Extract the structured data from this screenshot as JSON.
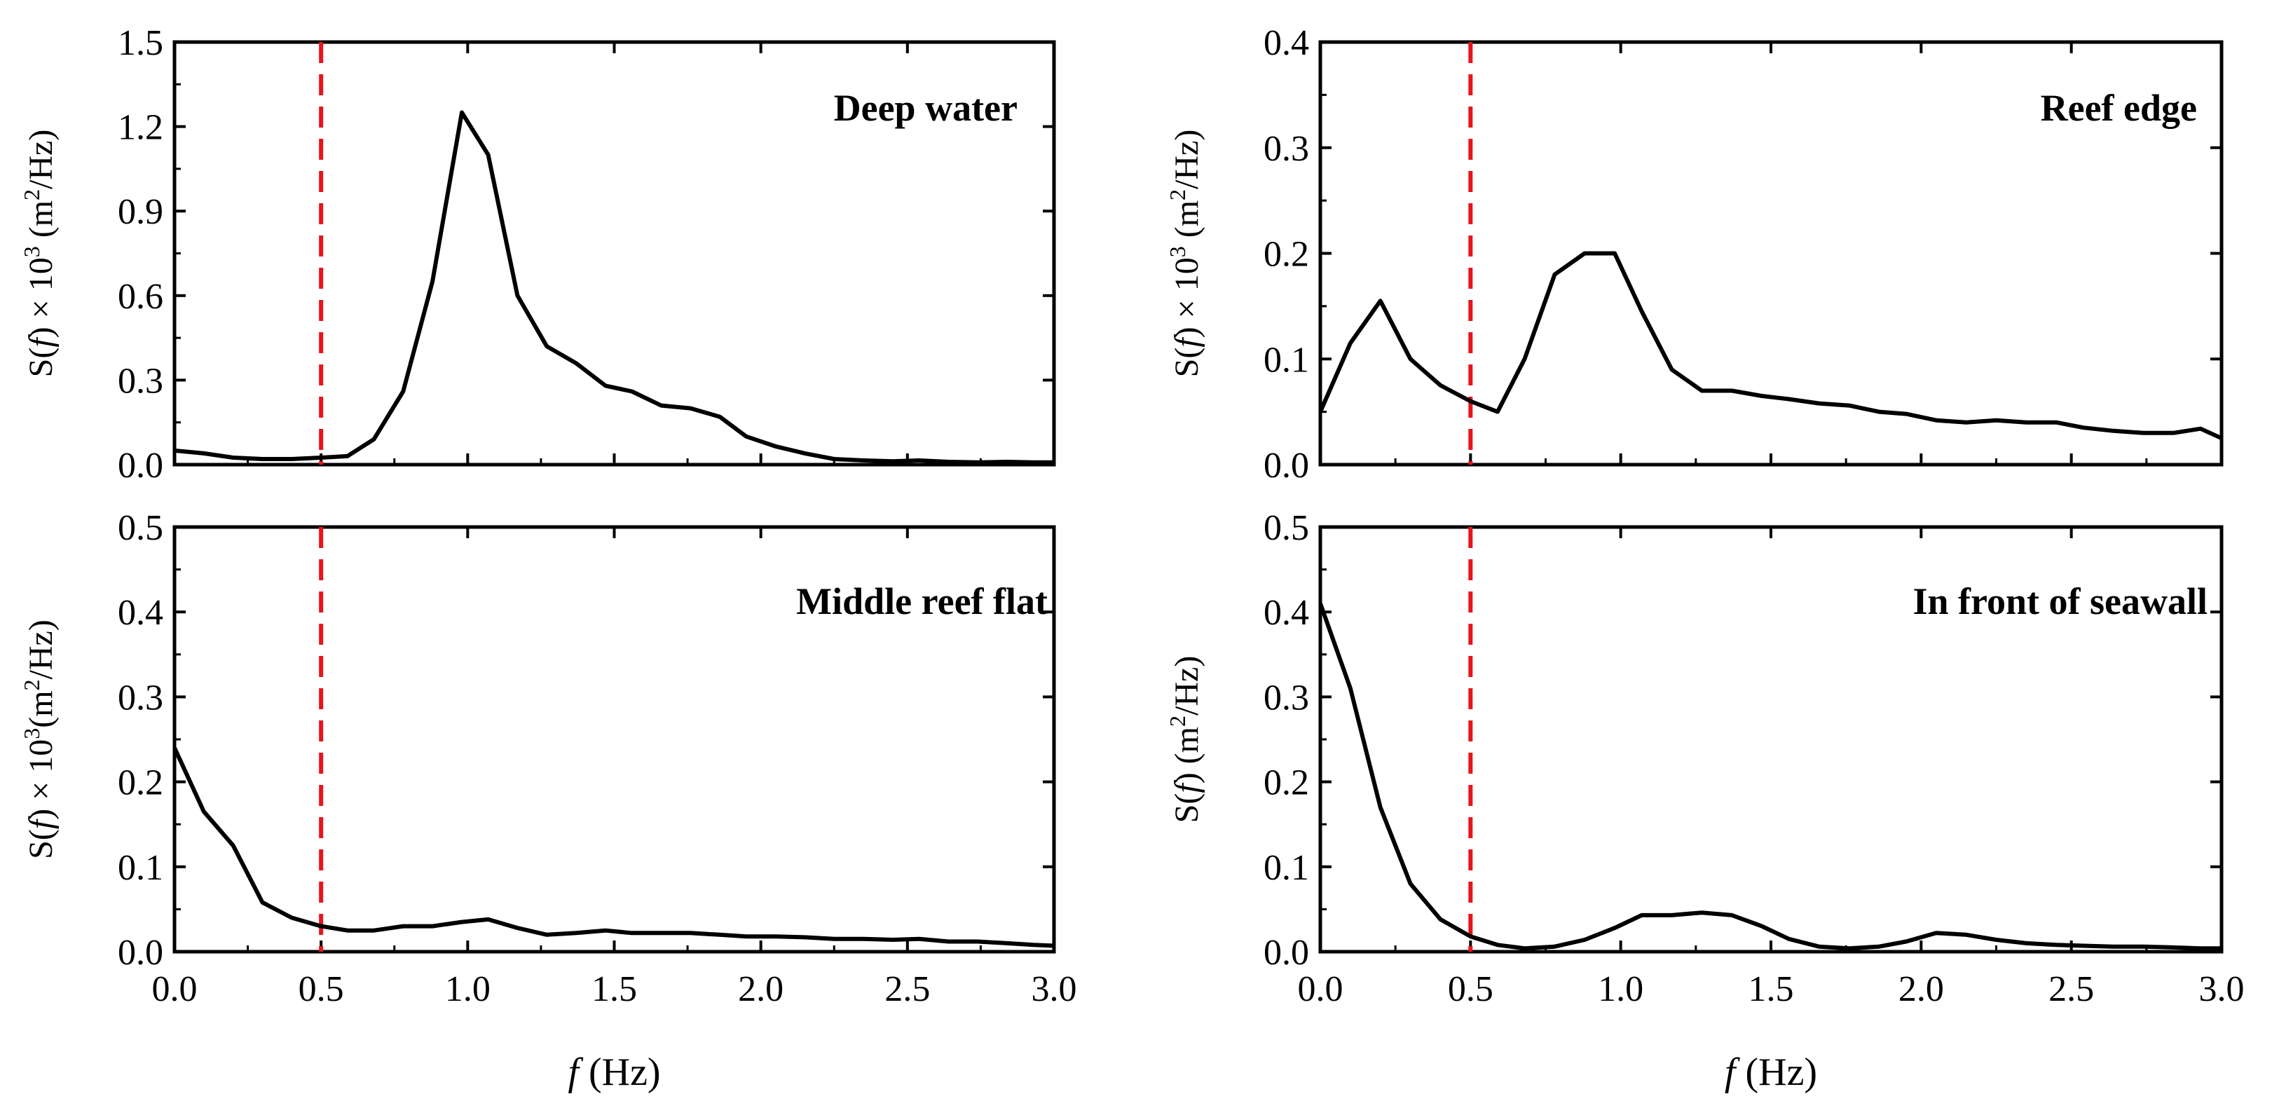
{
  "chart_data": [
    {
      "type": "line",
      "title": "Deep water",
      "xlabel": "f (Hz)",
      "ylabel": "S(f) × 10³ (m²/Hz)",
      "ylabel_parts": {
        "pre": "S(",
        "var": "f",
        "mid": ") × 10",
        "sup1": "3",
        "mid2": " (m",
        "sup2": "2",
        "post": "/Hz)"
      },
      "xlim": [
        0,
        3.0
      ],
      "ylim": [
        0,
        1.5
      ],
      "yticks": [
        "0.0",
        "0.3",
        "0.6",
        "0.9",
        "1.2",
        "1.5"
      ],
      "xticks": [],
      "cutoff_x": 0.5,
      "line_color": "#000000",
      "cutoff_color": "#e8141c",
      "x": [
        0.0,
        0.1,
        0.2,
        0.3,
        0.4,
        0.5,
        0.59,
        0.68,
        0.78,
        0.88,
        0.98,
        1.07,
        1.17,
        1.27,
        1.37,
        1.47,
        1.56,
        1.66,
        1.76,
        1.86,
        1.95,
        2.05,
        2.15,
        2.25,
        2.35,
        2.45,
        2.54,
        2.64,
        2.74,
        2.84,
        2.93,
        3.0
      ],
      "y": [
        0.05,
        0.04,
        0.025,
        0.02,
        0.02,
        0.025,
        0.03,
        0.09,
        0.26,
        0.65,
        1.25,
        1.1,
        0.6,
        0.42,
        0.36,
        0.28,
        0.26,
        0.21,
        0.2,
        0.17,
        0.1,
        0.065,
        0.04,
        0.02,
        0.015,
        0.012,
        0.015,
        0.01,
        0.008,
        0.01,
        0.008,
        0.008
      ]
    },
    {
      "type": "line",
      "title": "Reef edge",
      "xlabel": "f (Hz)",
      "ylabel": "S(f) × 10³ (m²/Hz)",
      "ylabel_parts": {
        "pre": "S(",
        "var": "f",
        "mid": ") × 10",
        "sup1": "3",
        "mid2": " (m",
        "sup2": "2",
        "post": "/Hz)"
      },
      "xlim": [
        0,
        3.0
      ],
      "ylim": [
        0,
        0.4
      ],
      "yticks": [
        "0.0",
        "0.1",
        "0.2",
        "0.3",
        "0.4"
      ],
      "xticks": [],
      "cutoff_x": 0.5,
      "line_color": "#000000",
      "cutoff_color": "#e8141c",
      "x": [
        0.0,
        0.1,
        0.2,
        0.3,
        0.4,
        0.5,
        0.59,
        0.68,
        0.78,
        0.88,
        0.98,
        1.07,
        1.17,
        1.27,
        1.37,
        1.47,
        1.56,
        1.66,
        1.76,
        1.86,
        1.95,
        2.05,
        2.15,
        2.25,
        2.35,
        2.45,
        2.54,
        2.64,
        2.74,
        2.84,
        2.93,
        3.0
      ],
      "y": [
        0.05,
        0.115,
        0.155,
        0.1,
        0.075,
        0.06,
        0.05,
        0.1,
        0.18,
        0.2,
        0.2,
        0.145,
        0.09,
        0.07,
        0.07,
        0.065,
        0.062,
        0.058,
        0.056,
        0.05,
        0.048,
        0.042,
        0.04,
        0.042,
        0.04,
        0.04,
        0.035,
        0.032,
        0.03,
        0.03,
        0.034,
        0.025
      ]
    },
    {
      "type": "line",
      "title": "Middle reef flat",
      "xlabel": "f (Hz)",
      "ylabel": "S(f) × 10³(m²/Hz)",
      "ylabel_parts": {
        "pre": "S(",
        "var": "f",
        "mid": ") × 10",
        "sup1": "3",
        "mid2": "(m",
        "sup2": "2",
        "post": "/Hz)"
      },
      "xlim": [
        0,
        3.0
      ],
      "ylim": [
        0,
        0.5
      ],
      "yticks": [
        "0.0",
        "0.1",
        "0.2",
        "0.3",
        "0.4",
        "0.5"
      ],
      "xticks": [
        "0.0",
        "0.5",
        "1.0",
        "1.5",
        "2.0",
        "2.5",
        "3.0"
      ],
      "cutoff_x": 0.5,
      "line_color": "#000000",
      "cutoff_color": "#e8141c",
      "x": [
        0.0,
        0.1,
        0.2,
        0.3,
        0.4,
        0.5,
        0.59,
        0.68,
        0.78,
        0.88,
        0.98,
        1.07,
        1.17,
        1.27,
        1.37,
        1.47,
        1.56,
        1.66,
        1.76,
        1.86,
        1.95,
        2.05,
        2.15,
        2.25,
        2.35,
        2.45,
        2.54,
        2.64,
        2.74,
        2.84,
        2.93,
        3.0
      ],
      "y": [
        0.24,
        0.165,
        0.125,
        0.058,
        0.04,
        0.03,
        0.025,
        0.025,
        0.03,
        0.03,
        0.035,
        0.038,
        0.028,
        0.02,
        0.022,
        0.025,
        0.022,
        0.022,
        0.022,
        0.02,
        0.018,
        0.018,
        0.017,
        0.015,
        0.015,
        0.014,
        0.015,
        0.012,
        0.012,
        0.01,
        0.008,
        0.007
      ]
    },
    {
      "type": "line",
      "title": "In front of seawall",
      "xlabel": "f (Hz)",
      "ylabel": "S(f) (m²/Hz)",
      "ylabel_parts": {
        "pre": "S(",
        "var": "f",
        "mid": ") (m",
        "sup1": "2",
        "mid2": "/Hz)",
        "sup2": "",
        "post": ""
      },
      "xlim": [
        0,
        3.0
      ],
      "ylim": [
        0,
        0.5
      ],
      "yticks": [
        "0.0",
        "0.1",
        "0.2",
        "0.3",
        "0.4",
        "0.5"
      ],
      "xticks": [
        "0.0",
        "0.5",
        "1.0",
        "1.5",
        "2.0",
        "2.5",
        "3.0"
      ],
      "cutoff_x": 0.5,
      "line_color": "#000000",
      "cutoff_color": "#e8141c",
      "x": [
        0.0,
        0.1,
        0.2,
        0.3,
        0.4,
        0.5,
        0.59,
        0.68,
        0.78,
        0.88,
        0.98,
        1.07,
        1.17,
        1.27,
        1.37,
        1.47,
        1.56,
        1.66,
        1.76,
        1.86,
        1.95,
        2.05,
        2.15,
        2.25,
        2.35,
        2.45,
        2.54,
        2.64,
        2.74,
        2.84,
        2.93,
        3.0
      ],
      "y": [
        0.41,
        0.31,
        0.17,
        0.08,
        0.038,
        0.018,
        0.008,
        0.004,
        0.006,
        0.014,
        0.028,
        0.043,
        0.043,
        0.046,
        0.043,
        0.03,
        0.015,
        0.006,
        0.004,
        0.006,
        0.012,
        0.022,
        0.02,
        0.014,
        0.01,
        0.008,
        0.007,
        0.006,
        0.006,
        0.005,
        0.004,
        0.004
      ]
    }
  ],
  "x_axis_titles": {
    "var": "f",
    "unit": "(Hz)"
  }
}
